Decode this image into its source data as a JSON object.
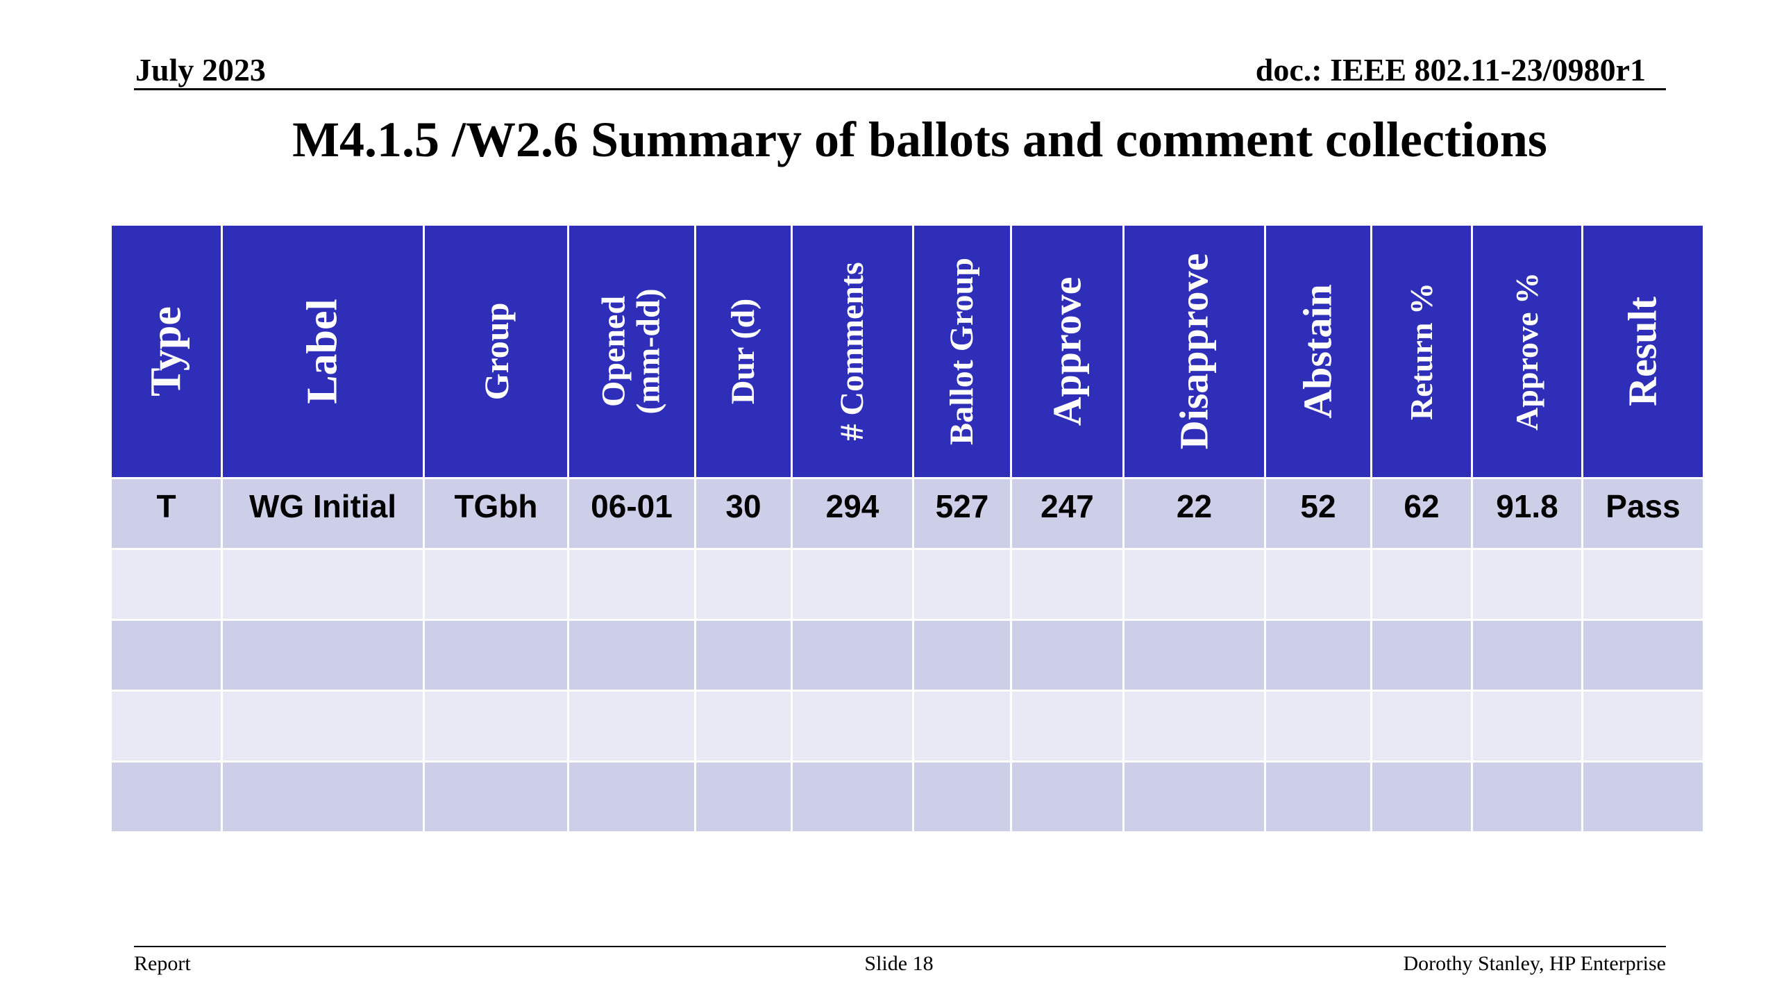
{
  "header": {
    "date": "July 2023",
    "doc_id": "doc.: IEEE 802.11-23/0980r1"
  },
  "title": "M4.1.5 /W2.6 Summary of ballots and comment collections",
  "table": {
    "columns": [
      {
        "label": "Type",
        "line2": ""
      },
      {
        "label": "Label",
        "line2": ""
      },
      {
        "label": "Group",
        "line2": ""
      },
      {
        "label": "Opened",
        "line2": "(mm-dd)"
      },
      {
        "label": "Dur (d)",
        "line2": ""
      },
      {
        "label": "# Comments",
        "line2": ""
      },
      {
        "label": "Ballot Group",
        "line2": ""
      },
      {
        "label": "Approve",
        "line2": ""
      },
      {
        "label": "Disapprove",
        "line2": ""
      },
      {
        "label": "Abstain",
        "line2": ""
      },
      {
        "label": "Return %",
        "line2": ""
      },
      {
        "label": "Approve %",
        "line2": ""
      },
      {
        "label": "Result",
        "line2": ""
      }
    ],
    "rows": [
      [
        "T",
        "WG Initial",
        "TGbh",
        "06-01",
        "30",
        "294",
        "527",
        "247",
        "22",
        "52",
        "62",
        "91.8",
        "Pass"
      ],
      [
        "",
        "",
        "",
        "",
        "",
        "",
        "",
        "",
        "",
        "",
        "",
        "",
        ""
      ],
      [
        "",
        "",
        "",
        "",
        "",
        "",
        "",
        "",
        "",
        "",
        "",
        "",
        ""
      ],
      [
        "",
        "",
        "",
        "",
        "",
        "",
        "",
        "",
        "",
        "",
        "",
        "",
        ""
      ],
      [
        "",
        "",
        "",
        "",
        "",
        "",
        "",
        "",
        "",
        "",
        "",
        "",
        ""
      ]
    ],
    "colors": {
      "header_bg": "#2e2eb8",
      "row_dark": "#cdcfe8",
      "row_light": "#e8e9f4"
    }
  },
  "footer": {
    "left": "Report",
    "center": "Slide 18",
    "right": "Dorothy Stanley, HP Enterprise"
  }
}
